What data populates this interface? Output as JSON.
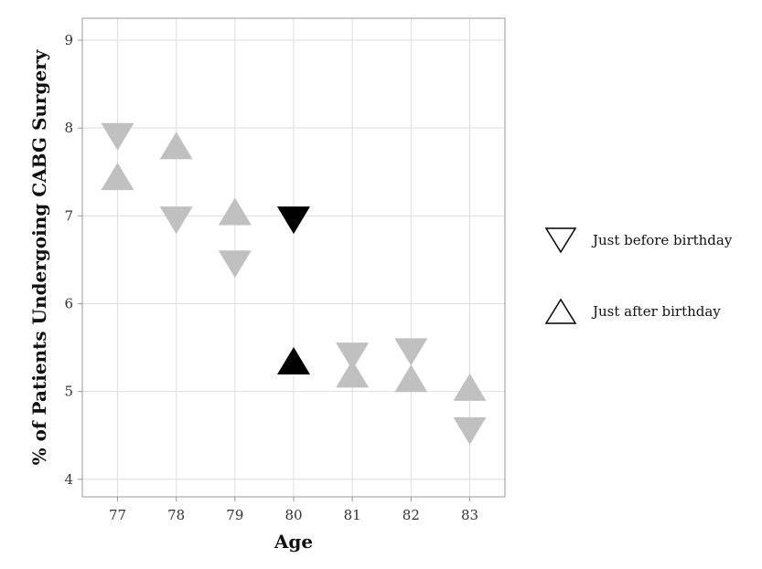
{
  "chart_data": {
    "type": "scatter",
    "xlabel": "Age",
    "ylabel": "% of Patients Undergoing CABG Surgery",
    "xlim": [
      76.4,
      83.6
    ],
    "ylim": [
      3.8,
      9.25
    ],
    "x_ticks": [
      77,
      78,
      79,
      80,
      81,
      82,
      83
    ],
    "y_ticks": [
      4,
      5,
      6,
      7,
      8,
      9
    ],
    "grid": true,
    "legend_position": "right",
    "colors": {
      "grey": "#c0c0c0",
      "highlight": "#000000",
      "grid": "#dedede",
      "frame": "#999999"
    },
    "series": [
      {
        "name": "Just before birthday",
        "marker": "triangle-down",
        "points": [
          {
            "x": 77,
            "y": 7.9,
            "highlight": false
          },
          {
            "x": 78,
            "y": 6.95,
            "highlight": false
          },
          {
            "x": 79,
            "y": 6.45,
            "highlight": false
          },
          {
            "x": 80,
            "y": 6.95,
            "highlight": true
          },
          {
            "x": 81,
            "y": 5.4,
            "highlight": false
          },
          {
            "x": 82,
            "y": 5.45,
            "highlight": false
          },
          {
            "x": 83,
            "y": 4.55,
            "highlight": false
          }
        ]
      },
      {
        "name": "Just after birthday",
        "marker": "triangle-up",
        "points": [
          {
            "x": 77,
            "y": 7.45,
            "highlight": false
          },
          {
            "x": 78,
            "y": 7.8,
            "highlight": false
          },
          {
            "x": 79,
            "y": 7.05,
            "highlight": false
          },
          {
            "x": 80,
            "y": 5.35,
            "highlight": true
          },
          {
            "x": 81,
            "y": 5.2,
            "highlight": false
          },
          {
            "x": 82,
            "y": 5.15,
            "highlight": false
          },
          {
            "x": 83,
            "y": 5.05,
            "highlight": false
          }
        ]
      }
    ]
  }
}
